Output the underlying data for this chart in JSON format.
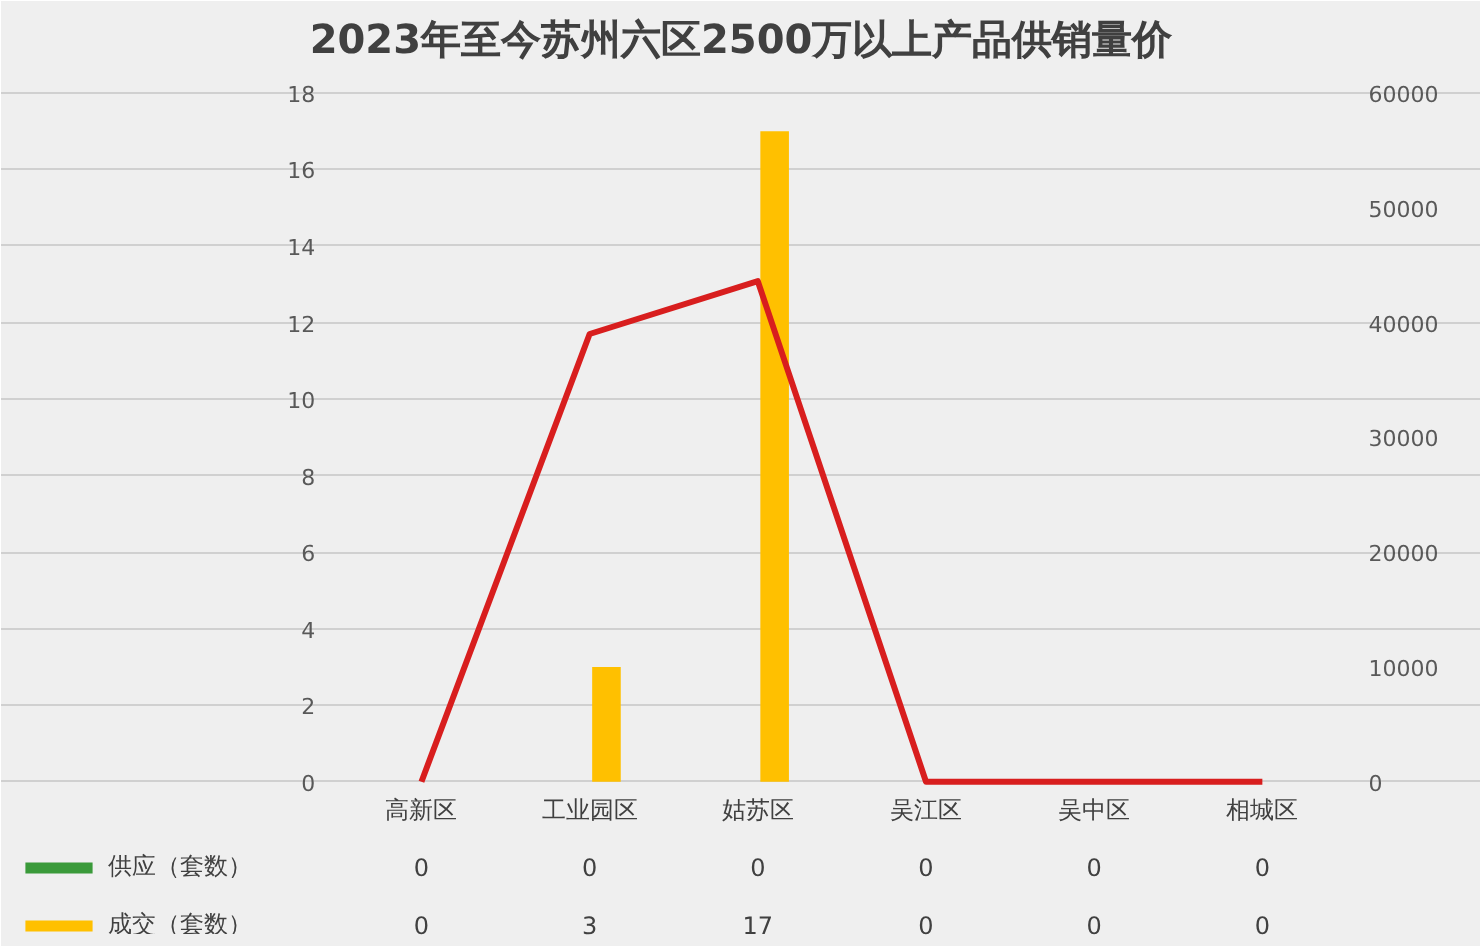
{
  "chart_data": {
    "type": "bar",
    "title": "2023年至今苏州六区2500万以上产品供销量价",
    "categories": [
      "高新区",
      "工业园区",
      "姑苏区",
      "吴江区",
      "吴中区",
      "相城区"
    ],
    "series": [
      {
        "name": "供应（套数）",
        "color": "#3a9a3a",
        "values": [
          0,
          0,
          0,
          0,
          0,
          0
        ],
        "value_labels": [
          "0",
          "0",
          "0",
          "0",
          "0",
          "0"
        ]
      },
      {
        "name": "成交（套数）",
        "color": "#ffc000",
        "values": [
          0,
          3,
          17,
          0,
          0,
          0
        ],
        "value_labels": [
          "0",
          "3",
          "17",
          "0",
          "0",
          "0"
        ]
      },
      {
        "type": "line",
        "axis": "y2",
        "color": "#d81e1e",
        "values": [
          0,
          39000,
          43600,
          0,
          0,
          0
        ]
      }
    ],
    "ylim": [
      0,
      18
    ],
    "yticks": [
      0,
      2,
      4,
      6,
      8,
      10,
      12,
      14,
      16,
      18
    ],
    "y2lim": [
      0,
      60000
    ],
    "y2ticks": [
      0,
      10000,
      20000,
      30000,
      40000,
      50000,
      60000
    ],
    "grid": "y",
    "legend": "bottom left"
  }
}
